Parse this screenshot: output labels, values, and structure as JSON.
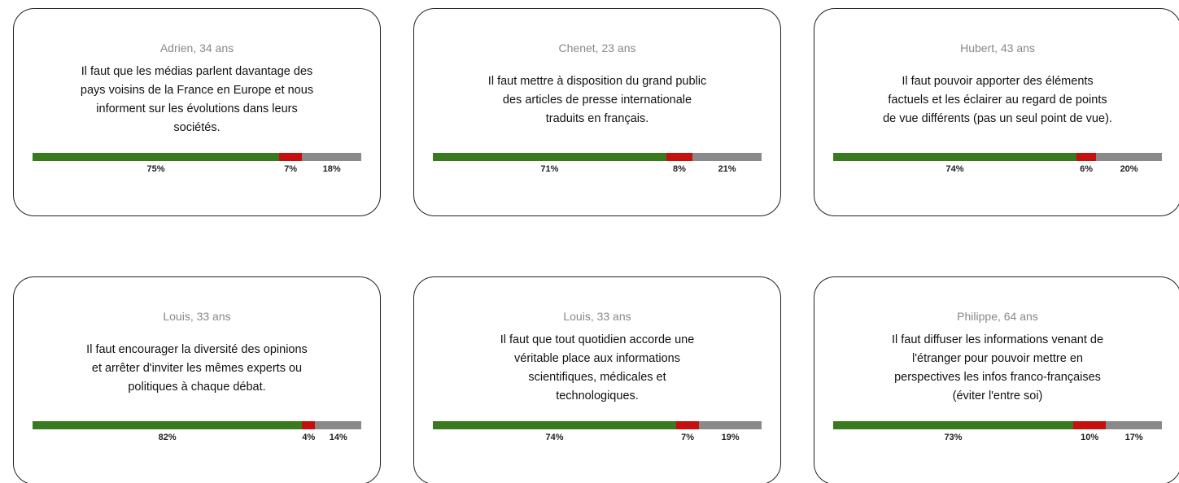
{
  "cards": [
    {
      "author": "Adrien, 34 ans",
      "lines": [
        "Il faut que les médias parlent davantage des",
        "pays voisins de la France en Europe et nous",
        "informent sur les évolutions dans leurs",
        "sociétés."
      ],
      "values": [
        75,
        7,
        18
      ],
      "value_labels": [
        "75%",
        "7%",
        "18%"
      ]
    },
    {
      "author": "Chenet, 23 ans",
      "lines": [
        "Il faut mettre à disposition du grand public",
        "des articles de presse internationale",
        "traduits en français."
      ],
      "values": [
        71,
        8,
        21
      ],
      "value_labels": [
        "71%",
        "8%",
        "21%"
      ]
    },
    {
      "author": "Hubert, 43 ans",
      "lines": [
        "Il faut pouvoir apporter des éléments",
        "factuels et les éclairer au regard de points",
        "de vue différents (pas un seul point de vue)."
      ],
      "values": [
        74,
        6,
        20
      ],
      "value_labels": [
        "74%",
        "6%",
        "20%"
      ]
    },
    {
      "author": "Louis, 33 ans",
      "lines": [
        "Il faut encourager la diversité des opinions",
        "et arrêter d'inviter les mêmes experts ou",
        "politiques à chaque débat."
      ],
      "values": [
        82,
        4,
        14
      ],
      "value_labels": [
        "82%",
        "4%",
        "14%"
      ]
    },
    {
      "author": "Louis, 33 ans",
      "lines": [
        "Il faut que tout quotidien accorde une",
        "véritable place aux informations",
        "scientifiques, médicales et",
        "technologiques."
      ],
      "values": [
        74,
        7,
        19
      ],
      "value_labels": [
        "74%",
        "7%",
        "19%"
      ]
    },
    {
      "author": "Philippe, 64 ans",
      "lines": [
        "Il faut diffuser les informations venant de",
        "l'étranger pour pouvoir mettre en",
        "perspectives les infos franco-françaises",
        "(éviter l'entre soi)"
      ],
      "values": [
        73,
        10,
        17
      ],
      "value_labels": [
        "73%",
        "10%",
        "17%"
      ]
    }
  ],
  "colors": [
    "#3a7a1e",
    "#c4100f",
    "#8a8a8a"
  ]
}
